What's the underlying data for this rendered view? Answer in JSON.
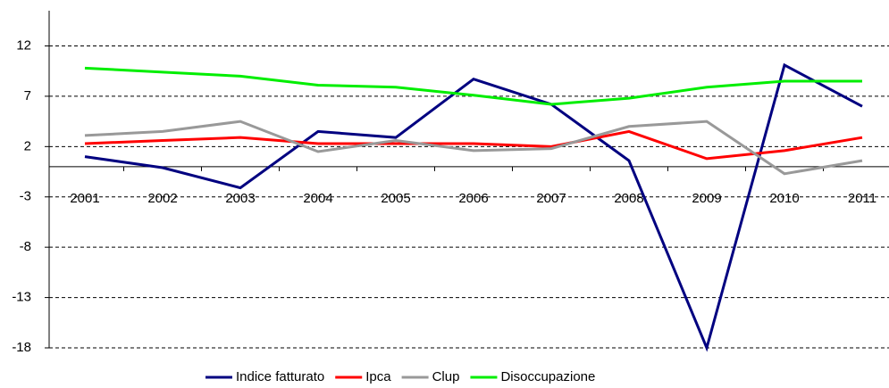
{
  "chart_data": {
    "type": "line",
    "categories": [
      "2001",
      "2002",
      "2003",
      "2004",
      "2005",
      "2006",
      "2007",
      "2008",
      "2009",
      "2010",
      "2011"
    ],
    "series": [
      {
        "name": "Indice fatturato",
        "color": "#000080",
        "values": [
          1.0,
          -0.1,
          -2.1,
          3.5,
          2.9,
          8.7,
          6.2,
          0.6,
          -18,
          10.1,
          6.0
        ]
      },
      {
        "name": "Ipca",
        "color": "#ff0000",
        "values": [
          2.3,
          2.6,
          2.9,
          2.3,
          2.3,
          2.3,
          2.0,
          3.5,
          0.8,
          1.6,
          2.9
        ]
      },
      {
        "name": "Clup",
        "color": "#999999",
        "values": [
          3.1,
          3.5,
          4.5,
          1.5,
          2.6,
          1.6,
          1.8,
          4.0,
          4.5,
          -0.7,
          0.6
        ]
      },
      {
        "name": "Disoccupazione",
        "color": "#00ee00",
        "values": [
          9.8,
          9.4,
          9.0,
          8.1,
          7.9,
          7.1,
          6.2,
          6.8,
          7.9,
          8.5,
          8.5
        ]
      }
    ],
    "ylim": [
      -18,
      15.5
    ],
    "yticks": [
      -18,
      -13,
      -8,
      -3,
      2,
      7,
      12
    ],
    "grid": true,
    "legend": "bottom"
  }
}
